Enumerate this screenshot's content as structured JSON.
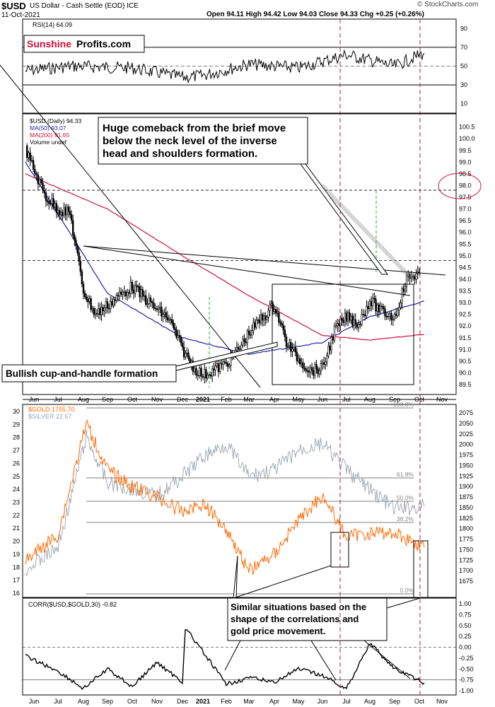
{
  "header": {
    "symbol": "$USD",
    "name": "US Dollar - Cash Settle (EOD) ICE",
    "date": "11-Oct-2021",
    "quote": "Open 94.11  High 94.42  Low 94.03  Close 94.33  Chg +0.25 (+0.26%)",
    "credit": "© StockCharts.com"
  },
  "logo": {
    "part1": "Sunshine",
    "part2": "Profits.com"
  },
  "colors": {
    "ma50": "#1f1fa8",
    "ma200": "#d0103a",
    "gold": "#ff6a00",
    "silver": "#9aa3ad",
    "dashed_red": "#c0143c",
    "annotation_green": "#22a844",
    "logo_red": "#d0103a"
  },
  "annotations": {
    "comeback": "Huge comeback from the brief move below the neck level of the inverse head and shoulders formation.",
    "cup_handle": "Bullish cup-and-handle formation",
    "similar": "Similar situations based on the shape of the correlations and gold price movement."
  },
  "months": [
    "Jun",
    "Jul",
    "Aug",
    "Sep",
    "Oct",
    "Nov",
    "Dec",
    "2021",
    "Feb",
    "Mar",
    "Apr",
    "May",
    "Jun",
    "Jul",
    "Aug",
    "Sep",
    "Oct",
    "Nov"
  ],
  "chart_data": [
    {
      "type": "line",
      "panel": "rsi",
      "legend": "RSI(14) 64.09",
      "ylim": [
        0,
        100
      ],
      "ticks": [
        "90",
        "70",
        "50",
        "30",
        "10"
      ],
      "reference_lines": [
        30,
        50,
        70
      ],
      "series": [
        {
          "name": "RSI(14)",
          "x": [
            "Jun",
            "Aug",
            "Oct",
            "Dec",
            "2021",
            "Mar",
            "May",
            "Jul",
            "Sep",
            "Oct"
          ],
          "values": [
            45,
            50,
            48,
            38,
            40,
            52,
            48,
            62,
            50,
            64
          ]
        }
      ]
    },
    {
      "type": "line",
      "panel": "usd",
      "legend": [
        "$USD (Daily) 94.33",
        "MA(50) 93.07",
        "MA(200) 91.65",
        "Volume undef"
      ],
      "ylim": [
        89.2,
        100.7
      ],
      "ticks": [
        "100.5",
        "100.0",
        "99.5",
        "99.0",
        "98.5",
        "98.0",
        "97.5",
        "97.0",
        "96.5",
        "96.0",
        "95.5",
        "95.0",
        "94.5",
        "94.0",
        "93.5",
        "93.0",
        "92.5",
        "92.0",
        "91.5",
        "91.0",
        "90.5",
        "90.0",
        "89.5"
      ],
      "series": [
        {
          "name": "$USD (Daily)",
          "x": [
            "Jun",
            "Jun",
            "Jul",
            "Jul",
            "Aug",
            "Aug",
            "Sep",
            "Sep",
            "Oct",
            "Oct",
            "Nov",
            "Nov",
            "Dec",
            "Dec",
            "2021",
            "Feb",
            "Feb",
            "Mar",
            "Mar",
            "Apr",
            "Apr",
            "May",
            "May",
            "Jun",
            "Jun",
            "Jul",
            "Jul",
            "Aug",
            "Aug",
            "Sep",
            "Sep",
            "Oct"
          ],
          "values": [
            99.5,
            97.5,
            97.0,
            96.8,
            93.5,
            92.5,
            92.9,
            93.3,
            93.7,
            93.2,
            92.7,
            92.3,
            91.0,
            90.2,
            89.9,
            90.4,
            91.0,
            91.7,
            92.3,
            92.9,
            91.3,
            90.6,
            90.1,
            90.2,
            91.8,
            92.4,
            92.1,
            93.1,
            92.6,
            92.4,
            94.0,
            94.3
          ]
        },
        {
          "name": "MA(50)",
          "x": [
            "Jun",
            "Sep",
            "Dec",
            "Mar",
            "Jun",
            "Aug",
            "Oct"
          ],
          "values": [
            99.0,
            93.4,
            91.5,
            90.8,
            91.3,
            92.4,
            93.07
          ]
        },
        {
          "name": "MA(200)",
          "x": [
            "Jun",
            "Sep",
            "Dec",
            "Mar",
            "Jun",
            "Aug",
            "Oct"
          ],
          "values": [
            98.5,
            97.0,
            95.0,
            93.3,
            91.6,
            91.4,
            91.65
          ]
        }
      ]
    },
    {
      "type": "line",
      "panel": "gold",
      "legend": [
        "$GOLD 1755.70",
        "$SILVER 22.67"
      ],
      "ylim_left": [
        16,
        30
      ],
      "ylim_right": [
        1650,
        2075
      ],
      "ticks_left": [
        "30",
        "29",
        "28",
        "27",
        "26",
        "25",
        "24",
        "23",
        "22",
        "21",
        "20",
        "19",
        "18",
        "17",
        "16"
      ],
      "ticks_right": [
        "2075",
        "2050",
        "2025",
        "2000",
        "1975",
        "1950",
        "1925",
        "1900",
        "1875",
        "1850",
        "1825",
        "1800",
        "1775",
        "1750",
        "1725",
        "1700",
        "1675"
      ],
      "fib_levels": [
        "100.0%",
        "61.8%",
        "50.0%",
        "38.2%",
        "0.0%"
      ],
      "series": [
        {
          "name": "$GOLD",
          "x": [
            "Jun",
            "Jul",
            "Aug",
            "Sep",
            "Oct",
            "Nov",
            "Dec",
            "2021",
            "Feb",
            "Mar",
            "Apr",
            "May",
            "Jun",
            "Jul",
            "Aug",
            "Sep",
            "Oct"
          ],
          "values": [
            1725,
            1785,
            2050,
            1940,
            1900,
            1875,
            1840,
            1860,
            1800,
            1700,
            1740,
            1820,
            1880,
            1780,
            1790,
            1790,
            1755.7
          ]
        },
        {
          "name": "$SILVER",
          "x": [
            "Jun",
            "Jul",
            "Aug",
            "Sep",
            "Oct",
            "Nov",
            "Dec",
            "2021",
            "Feb",
            "Mar",
            "Apr",
            "May",
            "Jun",
            "Jul",
            "Aug",
            "Sep",
            "Oct"
          ],
          "values": [
            17.8,
            19.5,
            28.0,
            24.5,
            24.0,
            23.5,
            25.0,
            26.5,
            27.5,
            25.0,
            25.5,
            27.0,
            27.5,
            25.5,
            24.0,
            22.5,
            22.67
          ]
        }
      ]
    },
    {
      "type": "line",
      "panel": "corr",
      "legend": "CORR($USD,$GOLD,30) -0.82",
      "ylim": [
        -1.0,
        1.0
      ],
      "ticks": [
        "1.00",
        "0.75",
        "0.50",
        "0.25",
        "0.00",
        "-0.25",
        "-0.50",
        "-0.75",
        "-1.00"
      ],
      "series": [
        {
          "name": "CORR($USD,$GOLD,30)",
          "x": [
            "Jun",
            "Jul",
            "Aug",
            "Sep",
            "Oct",
            "Nov",
            "Dec",
            "2021",
            "Feb",
            "Mar",
            "Apr",
            "May",
            "Jun",
            "Jul",
            "Aug",
            "Sep",
            "Oct"
          ],
          "values": [
            -0.2,
            -0.55,
            -0.95,
            -0.5,
            -0.9,
            -0.35,
            -0.8,
            0.45,
            -0.85,
            -0.7,
            -0.8,
            -0.5,
            -0.65,
            -0.95,
            0.1,
            -0.5,
            -0.82
          ]
        }
      ]
    }
  ]
}
